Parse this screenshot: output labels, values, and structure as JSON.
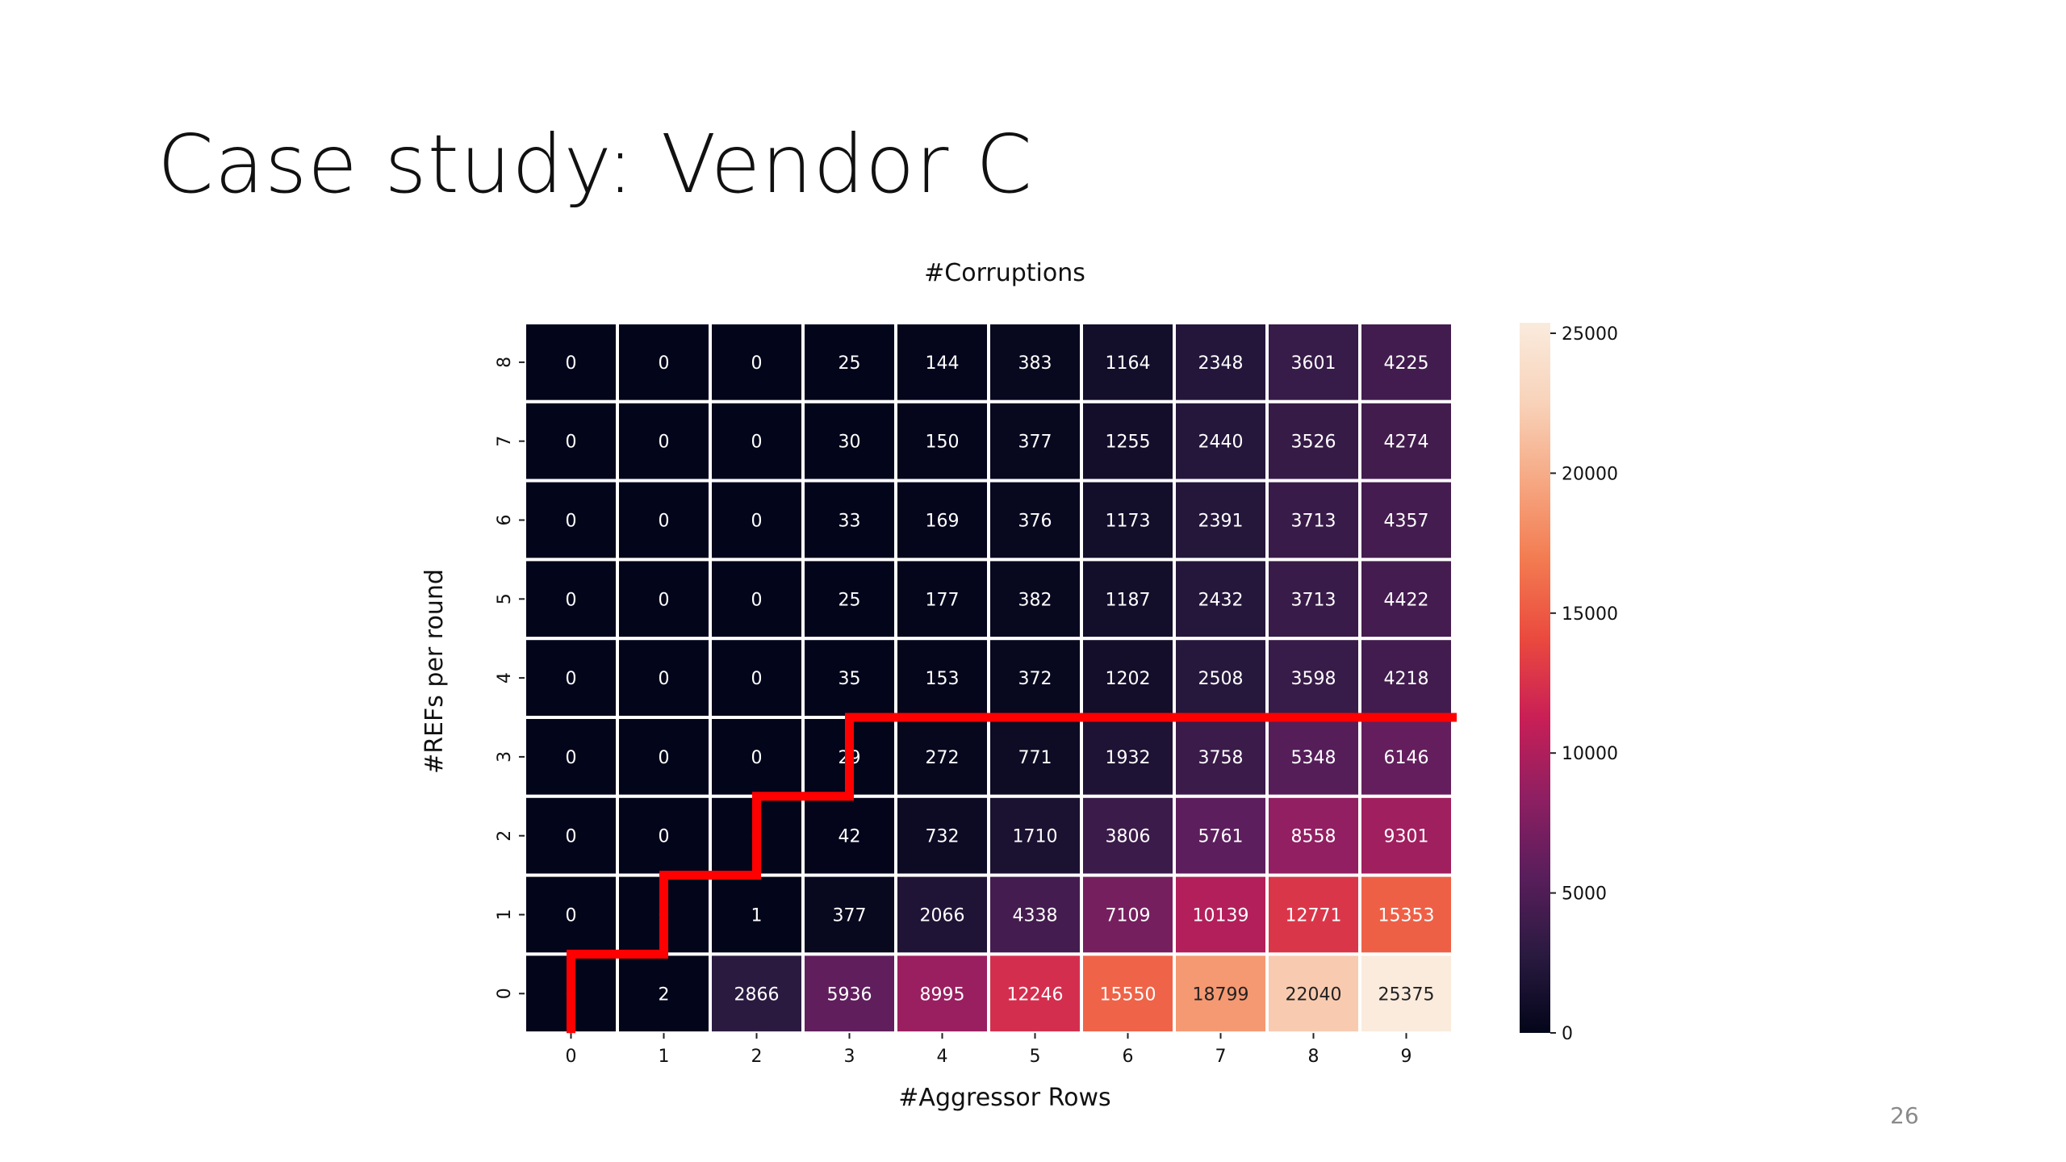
{
  "slide": {
    "title": "Case study: Vendor C",
    "page_number": "26"
  },
  "colors": {
    "boundary_line": "#ff0000",
    "colormap": "rocket",
    "colormap_stops": [
      "#03051a",
      "#2a1a40",
      "#5a1e5c",
      "#8f1f62",
      "#c91f56",
      "#ea4a3e",
      "#f37b51",
      "#f6a883",
      "#f8d3ba",
      "#faebdd"
    ]
  },
  "chart_data": {
    "type": "heatmap",
    "title": "#Corruptions",
    "xlabel": "#Aggressor Rows",
    "ylabel": "#REFs per round",
    "x_categories": [
      "0",
      "1",
      "2",
      "3",
      "4",
      "5",
      "6",
      "7",
      "8",
      "9"
    ],
    "y_categories": [
      "8",
      "7",
      "6",
      "5",
      "4",
      "3",
      "2",
      "1",
      "0"
    ],
    "values": [
      [
        0,
        0,
        0,
        25,
        144,
        383,
        1164,
        2348,
        3601,
        4225
      ],
      [
        0,
        0,
        0,
        30,
        150,
        377,
        1255,
        2440,
        3526,
        4274
      ],
      [
        0,
        0,
        0,
        33,
        169,
        376,
        1173,
        2391,
        3713,
        4357
      ],
      [
        0,
        0,
        0,
        25,
        177,
        382,
        1187,
        2432,
        3713,
        4422
      ],
      [
        0,
        0,
        0,
        35,
        153,
        372,
        1202,
        2508,
        3598,
        4218
      ],
      [
        0,
        0,
        0,
        29,
        272,
        771,
        1932,
        3758,
        5348,
        6146
      ],
      [
        0,
        0,
        0,
        42,
        732,
        1710,
        3806,
        5761,
        8558,
        9301
      ],
      [
        0,
        0,
        1,
        377,
        2066,
        4338,
        7109,
        10139,
        12771,
        15353
      ],
      [
        0,
        2,
        2866,
        5936,
        8995,
        12246,
        15550,
        18799,
        22040,
        25375
      ]
    ],
    "colorbar": {
      "range": [
        0,
        25375
      ],
      "ticks": [
        0,
        5000,
        10000,
        15000,
        20000,
        25000
      ],
      "tick_labels": [
        "0",
        "5000",
        "10000",
        "15000",
        "20000",
        "25000"
      ]
    },
    "boundary_staircase": [
      {
        "x_category": "0",
        "from_y": "0",
        "to_y": "0"
      },
      {
        "x_category": "1",
        "from_y": "1",
        "to_y": "1"
      },
      {
        "x_category": "2",
        "from_y": "2",
        "to_y": "2"
      },
      {
        "x_category": "3",
        "from_y": "3",
        "to_y": "3"
      },
      {
        "x_category": "4",
        "from_y": "3",
        "to_y": "3"
      },
      {
        "x_category": "9",
        "from_y": "3",
        "to_y": "3"
      }
    ],
    "grid": false,
    "legend": "colorbar right"
  }
}
